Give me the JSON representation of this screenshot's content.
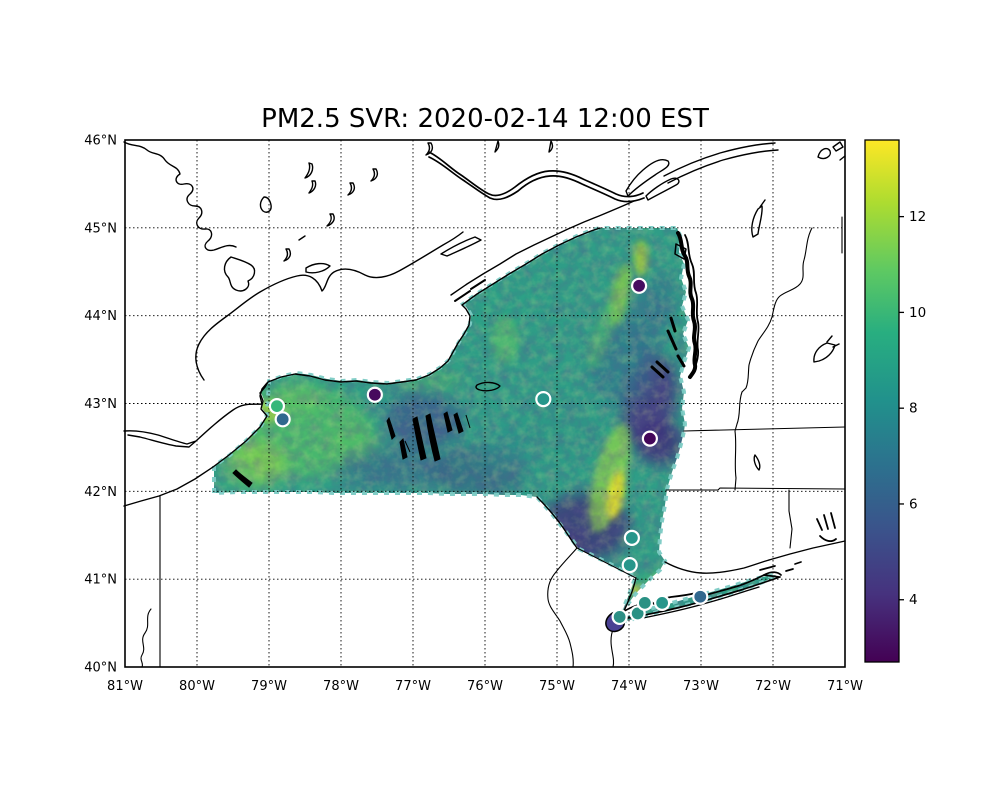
{
  "figure": {
    "title": "PM2.5 SVR: 2020-02-14 12:00 EST",
    "background_color": "#ffffff"
  },
  "chart_data": {
    "type": "heatmap",
    "subtype": "geographic interpolated PM2.5 surface over New York State with monitoring-station scatter overlay",
    "title": "PM2.5 SVR: 2020-02-14 12:00 EST",
    "grid": "dotted graticule, 1 degree spacing",
    "x_axis": {
      "kind": "longitude",
      "range": [
        -81,
        -71
      ],
      "ticks": [
        {
          "value": -81,
          "label": "81°W"
        },
        {
          "value": -80,
          "label": "80°W"
        },
        {
          "value": -79,
          "label": "79°W"
        },
        {
          "value": -78,
          "label": "78°W"
        },
        {
          "value": -77,
          "label": "77°W"
        },
        {
          "value": -76,
          "label": "76°W"
        },
        {
          "value": -75,
          "label": "75°W"
        },
        {
          "value": -74,
          "label": "74°W"
        },
        {
          "value": -73,
          "label": "73°W"
        },
        {
          "value": -72,
          "label": "72°W"
        },
        {
          "value": -71,
          "label": "71°W"
        }
      ]
    },
    "y_axis": {
      "kind": "latitude",
      "range": [
        40,
        46
      ],
      "ticks": [
        {
          "value": 46,
          "label": "46°N"
        },
        {
          "value": 45,
          "label": "45°N"
        },
        {
          "value": 44,
          "label": "44°N"
        },
        {
          "value": 43,
          "label": "43°N"
        },
        {
          "value": 42,
          "label": "42°N"
        },
        {
          "value": 41,
          "label": "41°N"
        },
        {
          "value": 40,
          "label": "40°N"
        }
      ]
    },
    "colorbar": {
      "colormap": "viridis",
      "vmin": 2.7,
      "vmax": 13.6,
      "ticks": [
        {
          "value": 12,
          "label": "12"
        },
        {
          "value": 10,
          "label": "10"
        },
        {
          "value": 8,
          "label": "8"
        },
        {
          "value": 6,
          "label": "6"
        },
        {
          "value": 4,
          "label": "4"
        }
      ],
      "stops": [
        {
          "offset": 0.0,
          "color": "#440154"
        },
        {
          "offset": 0.13,
          "color": "#46327e"
        },
        {
          "offset": 0.25,
          "color": "#3b528b"
        },
        {
          "offset": 0.38,
          "color": "#2c728e"
        },
        {
          "offset": 0.5,
          "color": "#21918c"
        },
        {
          "offset": 0.63,
          "color": "#28ae80"
        },
        {
          "offset": 0.75,
          "color": "#5ec962"
        },
        {
          "offset": 0.88,
          "color": "#addc30"
        },
        {
          "offset": 1.0,
          "color": "#fde725"
        }
      ]
    },
    "stations": [
      {
        "lon": -78.89,
        "lat": 42.97,
        "color": "#35b779",
        "value_est": 10.5
      },
      {
        "lon": -78.81,
        "lat": 42.82,
        "color": "#31688e",
        "value_est": 7.0
      },
      {
        "lon": -77.53,
        "lat": 43.1,
        "color": "#460a5d",
        "value_est": 3.5
      },
      {
        "lon": -75.19,
        "lat": 43.05,
        "color": "#27968b",
        "value_est": 9.3
      },
      {
        "lon": -73.86,
        "lat": 44.34,
        "color": "#470d60",
        "value_est": 3.7
      },
      {
        "lon": -73.71,
        "lat": 42.6,
        "color": "#44075a",
        "value_est": 3.4
      },
      {
        "lon": -73.96,
        "lat": 41.47,
        "color": "#27968b",
        "value_est": 9.3
      },
      {
        "lon": -73.99,
        "lat": 41.16,
        "color": "#27968b",
        "value_est": 9.3
      },
      {
        "lon": -74.13,
        "lat": 40.57,
        "color": "#2c8f85",
        "value_est": 9.0
      },
      {
        "lon": -73.88,
        "lat": 40.61,
        "color": "#2a9184",
        "value_est": 9.1
      },
      {
        "lon": -73.78,
        "lat": 40.73,
        "color": "#2a9184",
        "value_est": 9.1
      },
      {
        "lon": -73.54,
        "lat": 40.73,
        "color": "#27968b",
        "value_est": 9.3
      },
      {
        "lon": -73.01,
        "lat": 40.8,
        "color": "#31688e",
        "value_est": 7.0
      }
    ],
    "surface": {
      "base_color": "#2f9d87",
      "edge_dash_color": "#7ccbc4",
      "description_colors": {
        "high_pm_yellow": "#f1e51f",
        "mid_green": "#4bb96b",
        "low_pm_purple": "#443781"
      }
    }
  }
}
